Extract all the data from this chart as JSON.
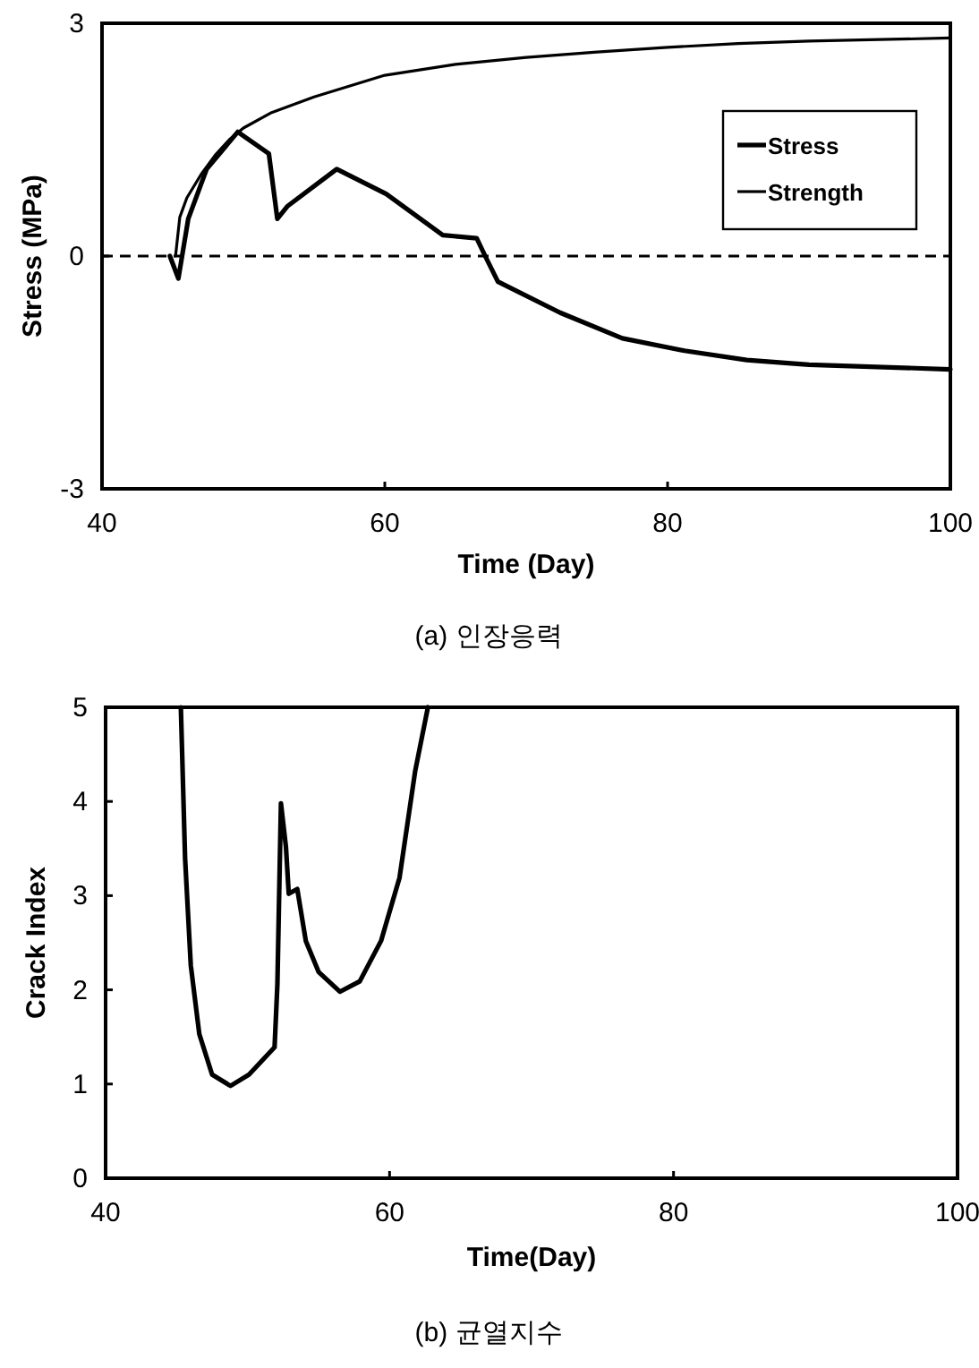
{
  "chart_data": [
    {
      "type": "line",
      "xlabel": "Time (Day)",
      "ylabel": "Stress (MPa)",
      "xlim": [
        40,
        100
      ],
      "xticks": [
        40,
        60,
        80,
        100
      ],
      "ylim": [
        -3,
        3
      ],
      "yticks": [
        -3,
        0,
        3
      ],
      "legend": "top right",
      "grid": false,
      "line_style": "solid",
      "ref_lines": [
        {
          "axis": "y",
          "value": 0,
          "line_style": "dashed",
          "color": "#000000"
        }
      ],
      "annotations": [
        "(a) 인장응력"
      ],
      "series": [
        {
          "name": "Stress",
          "color": "#000000",
          "x": [
            44.8,
            45.4,
            46.1,
            47.4,
            49.6,
            51.8,
            52.4,
            53.1,
            56.6,
            60.1,
            64.1,
            66.5,
            67.1,
            68.0,
            72.4,
            76.8,
            81.2,
            85.6,
            90.0,
            100
          ],
          "values": [
            0.0,
            -0.29,
            0.48,
            1.12,
            1.6,
            1.32,
            0.48,
            0.64,
            1.12,
            0.8,
            0.27,
            0.23,
            0.0,
            -0.33,
            -0.73,
            -1.06,
            -1.22,
            -1.34,
            -1.4,
            -1.46
          ]
        },
        {
          "name": "Strength",
          "color": "#000000",
          "x": [
            45.2,
            45.5,
            46,
            47,
            48,
            49,
            50,
            52,
            55,
            60,
            65,
            70,
            75,
            80,
            85,
            90,
            95,
            100
          ],
          "values": [
            0.0,
            0.5,
            0.75,
            1.05,
            1.3,
            1.5,
            1.65,
            1.85,
            2.05,
            2.33,
            2.47,
            2.56,
            2.63,
            2.69,
            2.74,
            2.77,
            2.79,
            2.81
          ]
        }
      ]
    },
    {
      "type": "line",
      "xlabel": "Time(Day)",
      "ylabel": "Crack Index",
      "xlim": [
        40,
        100
      ],
      "xticks": [
        40,
        60,
        80,
        100
      ],
      "ylim": [
        0,
        5
      ],
      "yticks": [
        0,
        1,
        2,
        3,
        4,
        5
      ],
      "legend": false,
      "grid": false,
      "line_style": "solid",
      "annotations": [
        "(b) 균열지수"
      ],
      "series": [
        {
          "color": "#000000",
          "x": [
            45.3,
            45.6,
            46.0,
            46.6,
            47.5,
            48.8,
            50.1,
            51.9,
            52.1,
            52.35,
            52.7,
            52.9,
            53.5,
            54.1,
            55.0,
            56.5,
            57.9,
            59.4,
            60.7,
            61.8,
            62.7
          ],
          "values": [
            5,
            3.39,
            2.26,
            1.53,
            1.1,
            0.98,
            1.1,
            1.39,
            2.06,
            3.98,
            3.52,
            3.02,
            3.07,
            2.52,
            2.19,
            1.98,
            2.09,
            2.52,
            3.19,
            4.32,
            5
          ]
        }
      ]
    }
  ]
}
